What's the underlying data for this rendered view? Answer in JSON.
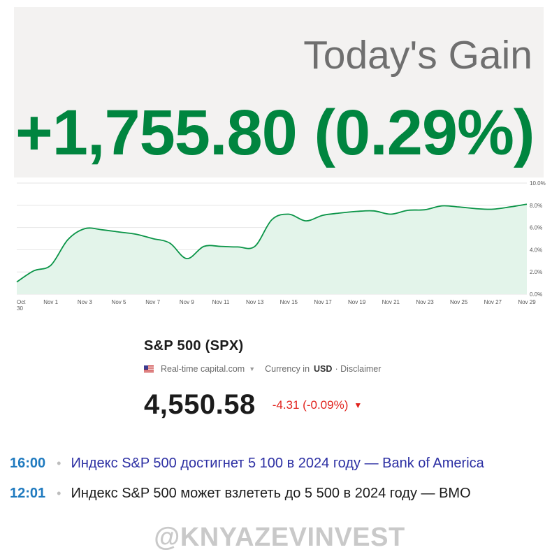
{
  "gain": {
    "label": "Today's Gain",
    "value": "+1,755.80 (0.29%)"
  },
  "chart_data": {
    "type": "area",
    "x": [
      "Oct 30",
      "Oct 31",
      "Nov 1",
      "Nov 2",
      "Nov 3",
      "Nov 4",
      "Nov 5",
      "Nov 6",
      "Nov 7",
      "Nov 8",
      "Nov 9",
      "Nov 10",
      "Nov 11",
      "Nov 12",
      "Nov 13",
      "Nov 14",
      "Nov 15",
      "Nov 16",
      "Nov 17",
      "Nov 18",
      "Nov 19",
      "Nov 20",
      "Nov 21",
      "Nov 22",
      "Nov 23",
      "Nov 24",
      "Nov 25",
      "Nov 26",
      "Nov 27",
      "Nov 28",
      "Nov 29"
    ],
    "values": [
      1.1,
      2.1,
      2.6,
      4.9,
      5.9,
      5.8,
      5.6,
      5.4,
      5.0,
      4.6,
      3.2,
      4.3,
      4.3,
      4.25,
      4.3,
      6.7,
      7.2,
      6.6,
      7.1,
      7.3,
      7.45,
      7.5,
      7.2,
      7.55,
      7.6,
      7.95,
      7.85,
      7.7,
      7.65,
      7.85,
      8.1
    ],
    "x_tick_labels": [
      "Oct 30",
      "Nov 1",
      "Nov 3",
      "Nov 5",
      "Nov 7",
      "Nov 9",
      "Nov 11",
      "Nov 13",
      "Nov 15",
      "Nov 17",
      "Nov 19",
      "Nov 21",
      "Nov 23",
      "Nov 25",
      "Nov 27",
      "Nov 29"
    ],
    "y_tick_labels": [
      "10.0%",
      "8.0%",
      "6.0%",
      "4.0%",
      "2.0%",
      "0.0%"
    ],
    "ylim": [
      0,
      10
    ],
    "grid": true,
    "colors": {
      "line": "#0a9447",
      "fill": "#e3f4ea",
      "grid": "#e6e6e6",
      "axis_text": "#555555"
    }
  },
  "quote": {
    "title": "S&P 500 (SPX)",
    "flag_icon": "us-flag-icon",
    "source": "Real-time capital.com",
    "currency_label": "Currency in",
    "currency": "USD",
    "disclaimer": "· Disclaimer",
    "price": "4,550.58",
    "change": "-4.31 (-0.09%)",
    "change_color": "#e1221c"
  },
  "news": [
    {
      "time": "16:00",
      "dot": "•",
      "text": "Индекс S&P 500 достигнет 5 100 в 2024 году — Bank of America"
    },
    {
      "time": "12:01",
      "dot": "•",
      "text": "Индекс S&P 500 может взлететь до 5 500 в 2024 году — BMO"
    }
  ],
  "watermark": "@KNYAZEVINVEST"
}
